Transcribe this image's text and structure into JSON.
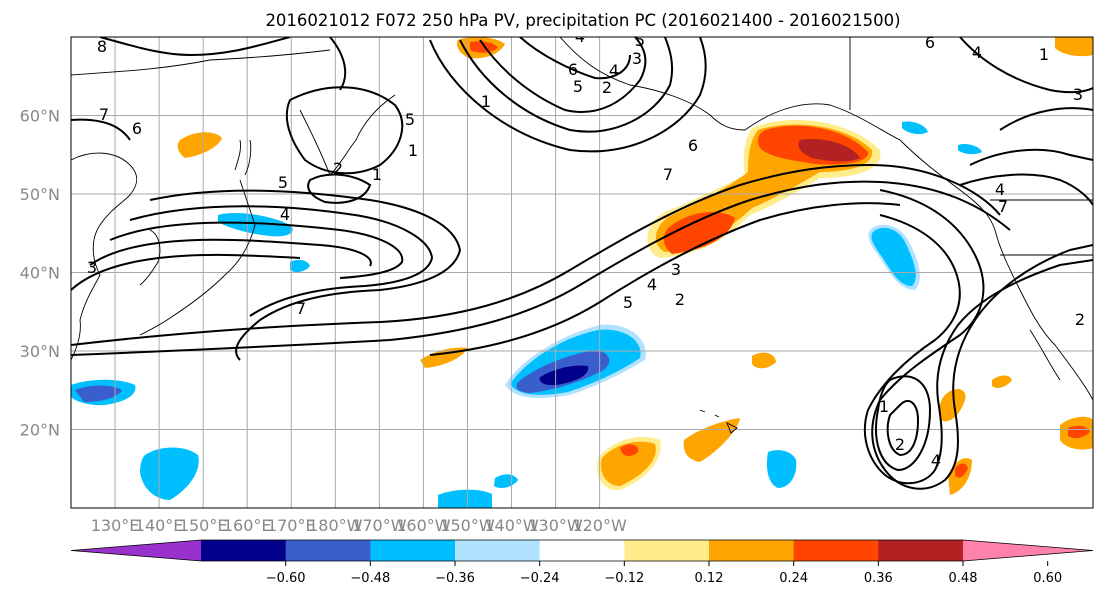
{
  "title": "2016021012 F072 250 hPa PV, precipitation PC (2016021400 - 2016021500)",
  "map": {
    "lon_range": [
      120,
      -112
    ],
    "lat_range": [
      10,
      70
    ],
    "lat_ticks": [
      {
        "value": 20,
        "label": "20°N"
      },
      {
        "value": 30,
        "label": "30°N"
      },
      {
        "value": 40,
        "label": "40°N"
      },
      {
        "value": 50,
        "label": "50°N"
      },
      {
        "value": 60,
        "label": "60°N"
      }
    ],
    "lon_ticks": [
      {
        "value": 130,
        "label": "130°E"
      },
      {
        "value": 140,
        "label": "140°E"
      },
      {
        "value": 150,
        "label": "150°E"
      },
      {
        "value": 160,
        "label": "160°E"
      },
      {
        "value": 170,
        "label": "170°E"
      },
      {
        "value": 180,
        "label": "180°W"
      },
      {
        "value": -170,
        "label": "170°W"
      },
      {
        "value": -160,
        "label": "160°W"
      },
      {
        "value": -150,
        "label": "150°W"
      },
      {
        "value": -140,
        "label": "140°W"
      },
      {
        "value": -130,
        "label": "130°W"
      },
      {
        "value": -120,
        "label": "120°W"
      }
    ],
    "grid": true,
    "contour_labels": [
      "8",
      "7",
      "6",
      "5",
      "4",
      "3",
      "2",
      "1",
      "7",
      "6",
      "5",
      "4",
      "3",
      "2",
      "1",
      "7",
      "6",
      "5",
      "4",
      "3",
      "2",
      "1",
      "2",
      "4",
      "5",
      "4",
      "5",
      "1",
      "4",
      "7",
      "6",
      "4",
      "3",
      "2",
      "1"
    ]
  },
  "colorbar": {
    "ticks": [
      "−0.60",
      "−0.48",
      "−0.36",
      "−0.24",
      "−0.12",
      "0.12",
      "0.24",
      "0.36",
      "0.48",
      "0.60"
    ],
    "colors": [
      "#9932cc",
      "#00008b",
      "#3a5fcd",
      "#00bfff",
      "#b0e2ff",
      "#ffffff",
      "#ffec8b",
      "#ffa500",
      "#ff4500",
      "#b22222",
      "#ff82ab"
    ]
  }
}
